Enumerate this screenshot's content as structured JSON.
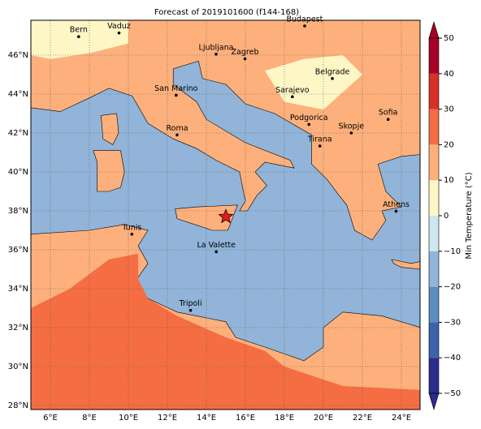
{
  "title": "Forecast of 2019101600 (f144-168)",
  "map": {
    "lon_ticks": [
      "6°E",
      "8°E",
      "10°E",
      "12°E",
      "14°E",
      "16°E",
      "18°E",
      "20°E",
      "22°E",
      "24°E"
    ],
    "lat_ticks": [
      "28°N",
      "30°N",
      "32°N",
      "34°N",
      "36°N",
      "38°N",
      "40°N",
      "42°N",
      "44°N",
      "46°N"
    ],
    "cities": [
      "Bern",
      "Vaduz",
      "Budapest",
      "Ljubljana",
      "Zagreb",
      "Belgrade",
      "San Marino",
      "Sarajevo",
      "Podgorica",
      "Sofia",
      "Skopje",
      "Roma",
      "Tirana",
      "Athens",
      "Tunis",
      "La Valette",
      "Tripoli"
    ]
  },
  "colorbar": {
    "label": "Min Temperature (°C)",
    "ticks": [
      {
        "value": -50,
        "label": "−50"
      },
      {
        "value": -40,
        "label": "−40"
      },
      {
        "value": -30,
        "label": "−30"
      },
      {
        "value": -20,
        "label": "−20"
      },
      {
        "value": -10,
        "label": "−10"
      },
      0,
      10,
      20,
      30,
      40,
      50
    ],
    "colors": [
      "#2b2b8e",
      "#3b63ab",
      "#5b8dc1",
      "#91b4d8",
      "#cfe6f0",
      "#fff6c6",
      "#fdb07b",
      "#f46d43",
      "#d73027",
      "#a50026"
    ]
  }
}
